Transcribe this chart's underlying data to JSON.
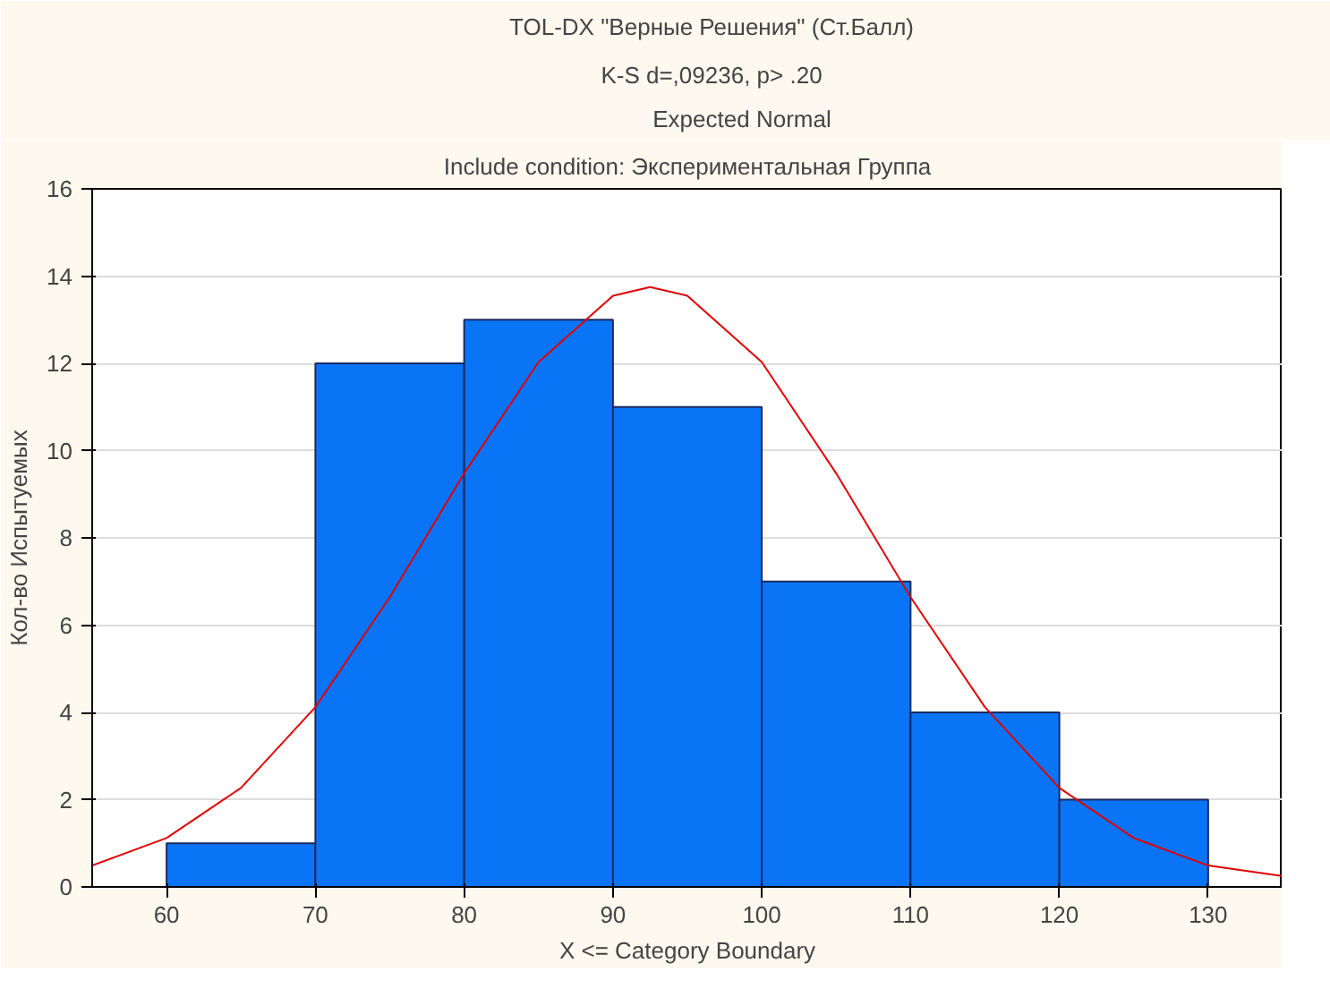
{
  "chart_data": {
    "type": "histogram",
    "title": "TOL-DX \"Верные Решения\" (Ст.Балл)",
    "subtitle": "K-S d=,09236, p> .20",
    "annotations": [
      "Include condition: Экспериментальная Группа"
    ],
    "xlabel": "X <= Category Boundary",
    "ylabel": "Кол-во Испытуемых",
    "bins": [
      60,
      70,
      80,
      90,
      100,
      110,
      120,
      130
    ],
    "values": [
      1,
      12,
      13,
      11,
      7,
      4,
      2
    ],
    "color": "#0a74f7",
    "series": [
      {
        "name": "Expected Normal",
        "type": "line",
        "color": "#e00000",
        "x": [
          55,
          60,
          65,
          70,
          75,
          80,
          85,
          90,
          92.5,
          95,
          100,
          105,
          110,
          115,
          120,
          125,
          130,
          135
        ],
        "values": [
          0.49,
          1.12,
          2.27,
          4.12,
          6.64,
          9.48,
          12.03,
          13.55,
          13.75,
          13.55,
          12.03,
          9.48,
          6.64,
          4.12,
          2.27,
          1.12,
          0.49,
          0.25
        ]
      }
    ],
    "xlim": [
      55,
      135
    ],
    "xticks": [
      60,
      70,
      80,
      90,
      100,
      110,
      120,
      130
    ],
    "ylim": [
      0,
      16
    ],
    "yticks": [
      0,
      2,
      4,
      6,
      8,
      10,
      12,
      14,
      16
    ],
    "grid": "y",
    "legend": "top"
  }
}
